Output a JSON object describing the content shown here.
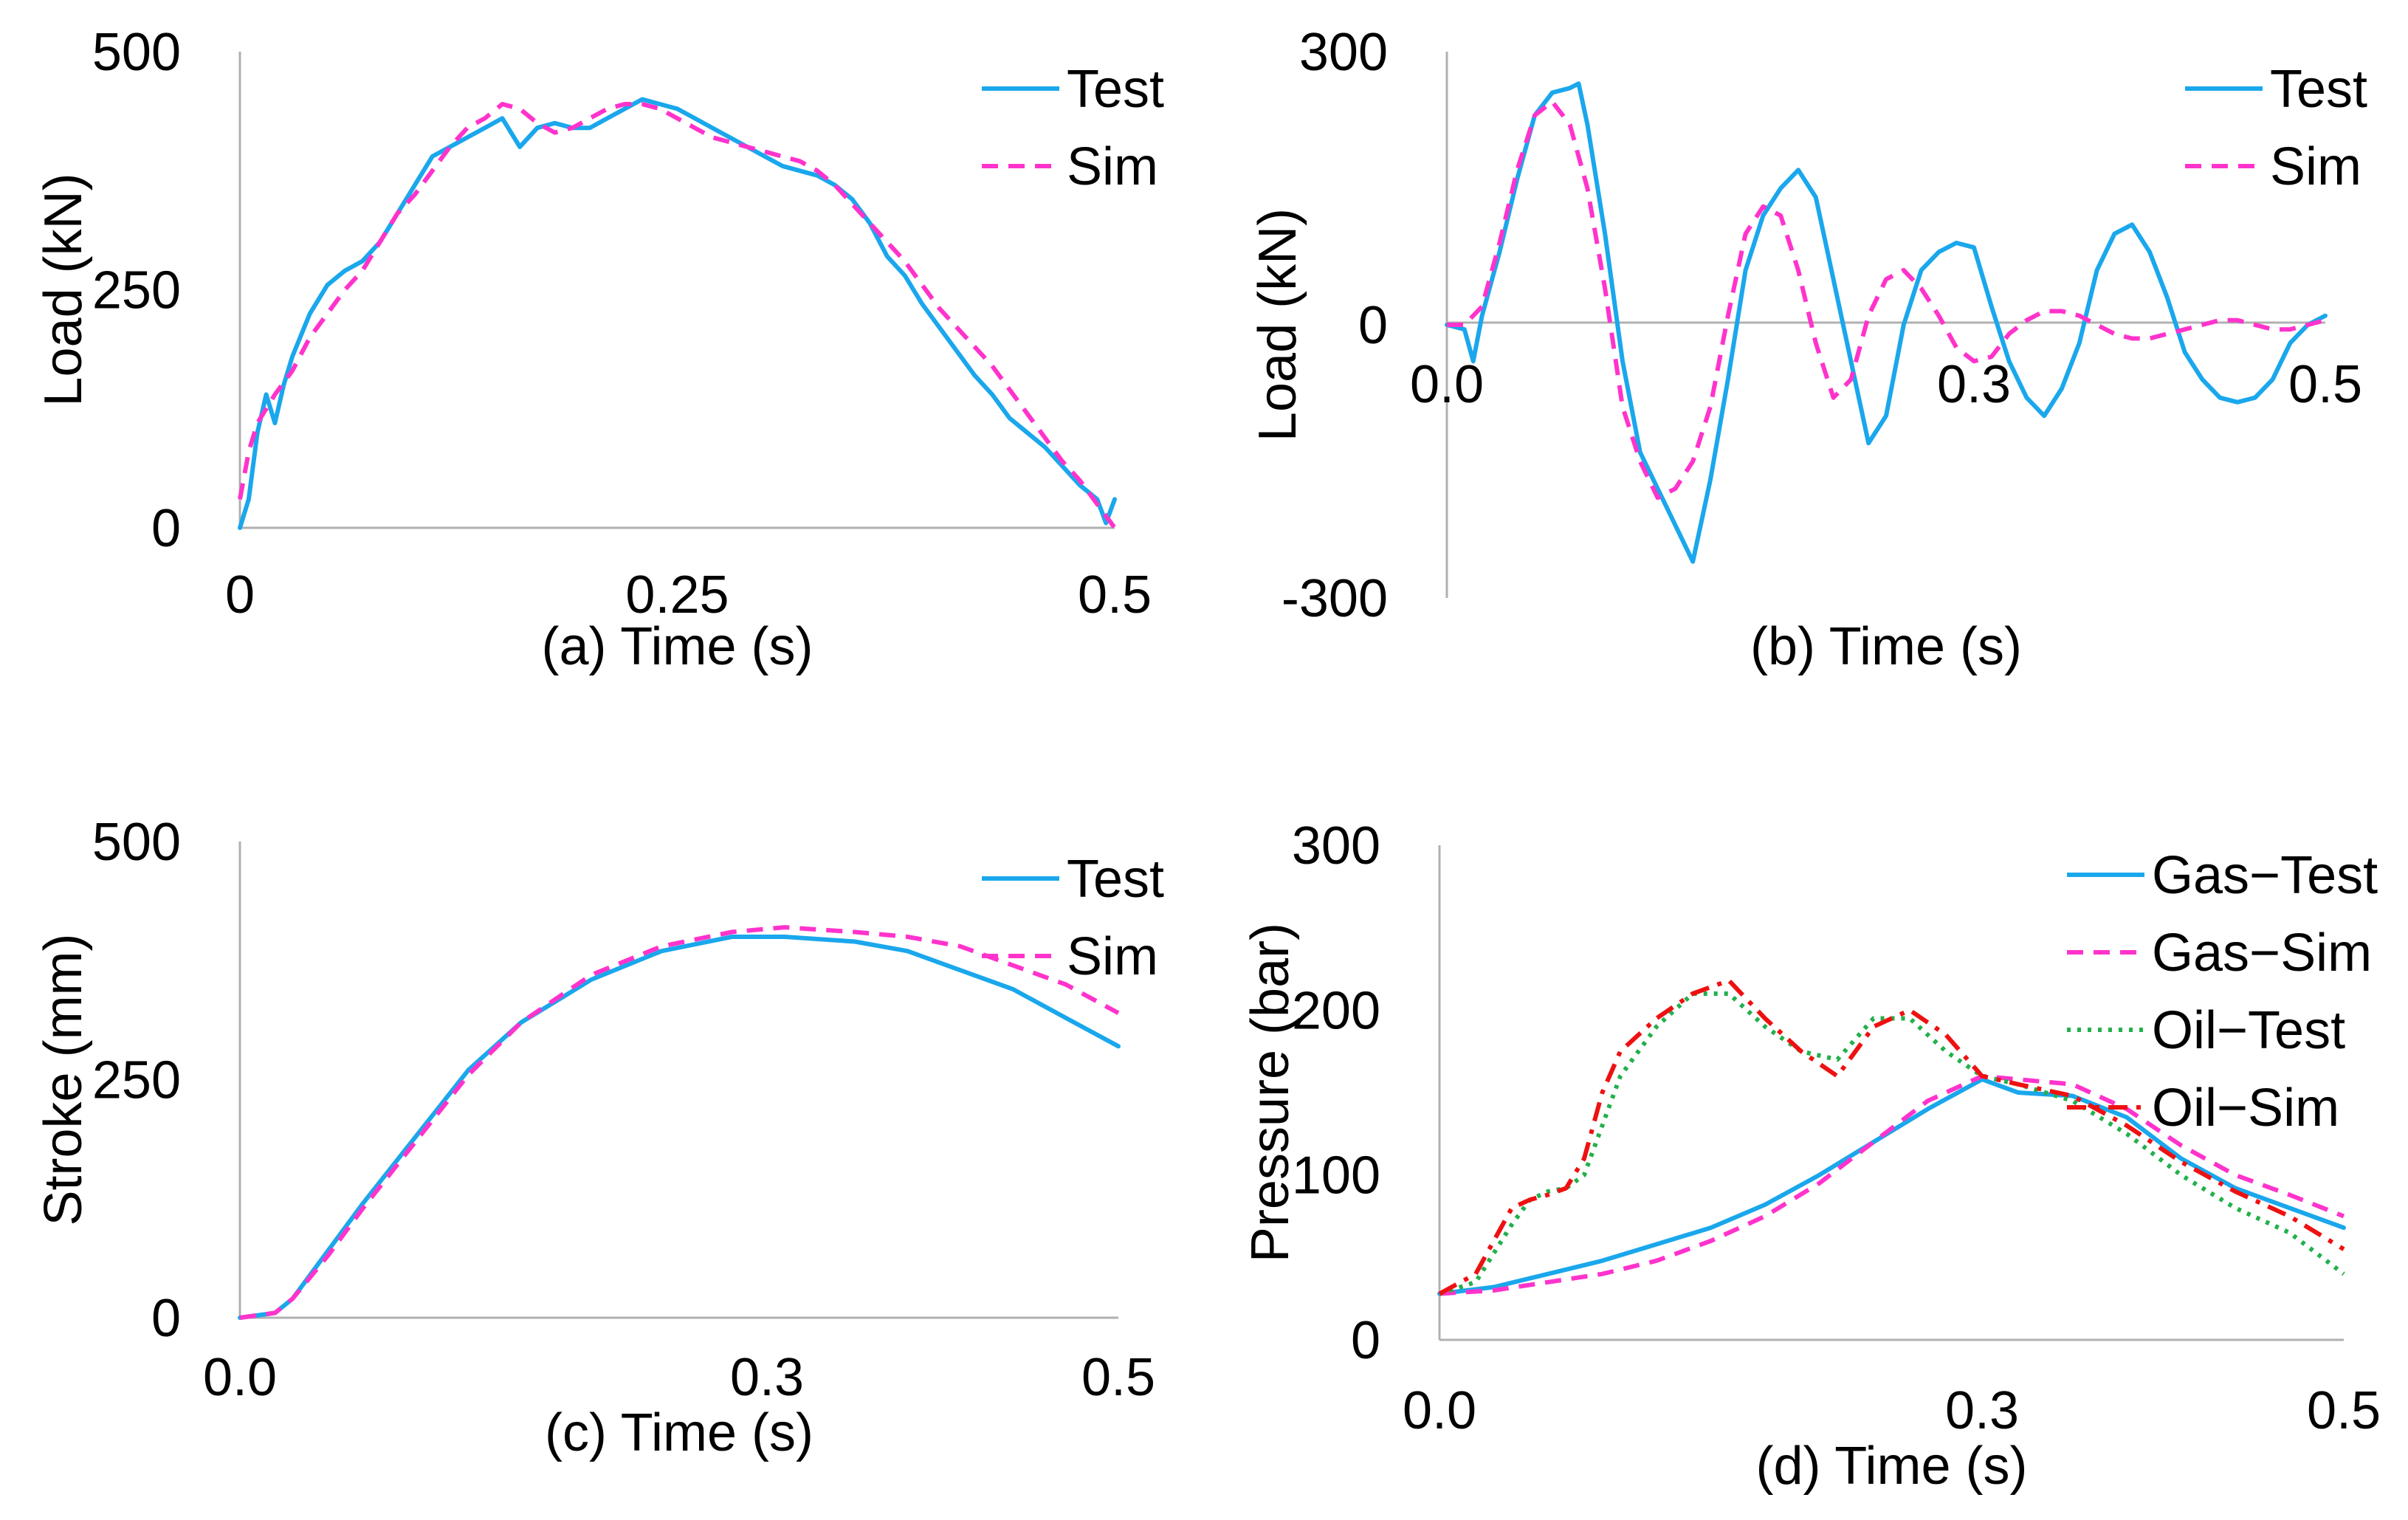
{
  "figure": {
    "colors": {
      "test": "#1aa7ec",
      "sim": "#ff33cc",
      "oil_test": "#22b04b",
      "oil_sim": "#ee1111",
      "axis": "#b0b0b0"
    }
  },
  "chart_data": [
    {
      "id": "a",
      "type": "line",
      "xlabel": "(a) Time (s)",
      "ylabel": "Load (kN)",
      "xlim": [
        0,
        0.5
      ],
      "ylim": [
        0,
        500
      ],
      "xticks": [
        "0",
        "0.25",
        "0.5"
      ],
      "yticks": [
        "0",
        "250",
        "500"
      ],
      "legend": "top-right",
      "grid": false,
      "series": [
        {
          "name": "Test",
          "style": "solid",
          "color": "#1aa7ec",
          "x": [
            0.0,
            0.005,
            0.01,
            0.015,
            0.02,
            0.025,
            0.03,
            0.04,
            0.05,
            0.06,
            0.07,
            0.08,
            0.09,
            0.1,
            0.11,
            0.12,
            0.13,
            0.14,
            0.15,
            0.16,
            0.17,
            0.18,
            0.19,
            0.2,
            0.21,
            0.22,
            0.23,
            0.24,
            0.25,
            0.26,
            0.27,
            0.28,
            0.29,
            0.3,
            0.31,
            0.32,
            0.33,
            0.34,
            0.35,
            0.36,
            0.37,
            0.38,
            0.39,
            0.4,
            0.41,
            0.42,
            0.43,
            0.44,
            0.45,
            0.46,
            0.47,
            0.48,
            0.49,
            0.495,
            0.5
          ],
          "y": [
            0,
            30,
            100,
            140,
            110,
            150,
            180,
            225,
            255,
            270,
            280,
            300,
            330,
            360,
            390,
            400,
            410,
            420,
            430,
            400,
            420,
            425,
            420,
            420,
            430,
            440,
            450,
            445,
            440,
            430,
            420,
            410,
            400,
            390,
            380,
            375,
            370,
            360,
            345,
            320,
            285,
            265,
            235,
            210,
            185,
            160,
            140,
            115,
            100,
            85,
            65,
            45,
            30,
            5,
            30
          ]
        },
        {
          "name": "Sim",
          "style": "dashed",
          "color": "#ff33cc",
          "x": [
            0.0,
            0.005,
            0.01,
            0.02,
            0.03,
            0.04,
            0.05,
            0.06,
            0.07,
            0.08,
            0.09,
            0.1,
            0.11,
            0.12,
            0.13,
            0.14,
            0.15,
            0.16,
            0.17,
            0.18,
            0.19,
            0.2,
            0.21,
            0.22,
            0.23,
            0.24,
            0.25,
            0.26,
            0.27,
            0.28,
            0.29,
            0.3,
            0.31,
            0.32,
            0.33,
            0.34,
            0.35,
            0.36,
            0.37,
            0.38,
            0.39,
            0.4,
            0.41,
            0.42,
            0.43,
            0.44,
            0.45,
            0.46,
            0.47,
            0.48,
            0.49,
            0.5
          ],
          "y": [
            30,
            80,
            110,
            140,
            165,
            200,
            225,
            250,
            270,
            300,
            330,
            350,
            375,
            400,
            420,
            430,
            445,
            440,
            425,
            415,
            420,
            430,
            440,
            445,
            445,
            440,
            430,
            420,
            410,
            405,
            400,
            395,
            390,
            385,
            375,
            360,
            340,
            320,
            300,
            280,
            255,
            230,
            210,
            190,
            170,
            145,
            120,
            95,
            70,
            50,
            25,
            0
          ]
        }
      ]
    },
    {
      "id": "b",
      "type": "line",
      "xlabel": "(b) Time (s)",
      "ylabel": "Load (kN)",
      "xlim": [
        0,
        0.5
      ],
      "ylim": [
        -300,
        300
      ],
      "xticks": [
        "0.0",
        "0.3",
        "0.5"
      ],
      "yticks": [
        "-300",
        "0",
        "300"
      ],
      "legend": "top-right",
      "grid": false,
      "series": [
        {
          "name": "Test",
          "style": "solid",
          "color": "#1aa7ec",
          "x": [
            0.0,
            0.01,
            0.015,
            0.02,
            0.03,
            0.04,
            0.05,
            0.06,
            0.07,
            0.075,
            0.08,
            0.09,
            0.1,
            0.11,
            0.12,
            0.13,
            0.14,
            0.15,
            0.16,
            0.17,
            0.18,
            0.19,
            0.2,
            0.21,
            0.22,
            0.23,
            0.24,
            0.25,
            0.26,
            0.27,
            0.28,
            0.29,
            0.3,
            0.31,
            0.32,
            0.33,
            0.34,
            0.35,
            0.36,
            0.37,
            0.38,
            0.39,
            0.4,
            0.41,
            0.42,
            0.43,
            0.44,
            0.45,
            0.46,
            0.47,
            0.48,
            0.49,
            0.5
          ],
          "y": [
            0,
            -5,
            -40,
            10,
            80,
            160,
            230,
            255,
            260,
            265,
            220,
            100,
            -40,
            -140,
            -180,
            -220,
            -260,
            -170,
            -60,
            60,
            120,
            150,
            170,
            140,
            50,
            -40,
            -130,
            -100,
            0,
            60,
            80,
            90,
            85,
            20,
            -40,
            -80,
            -100,
            -70,
            -20,
            60,
            100,
            110,
            80,
            30,
            -30,
            -60,
            -80,
            -85,
            -80,
            -60,
            -20,
            0,
            10
          ]
        },
        {
          "name": "Sim",
          "style": "dashed",
          "color": "#ff33cc",
          "x": [
            0.0,
            0.01,
            0.02,
            0.03,
            0.04,
            0.05,
            0.06,
            0.07,
            0.08,
            0.09,
            0.1,
            0.11,
            0.12,
            0.13,
            0.14,
            0.15,
            0.16,
            0.17,
            0.18,
            0.19,
            0.2,
            0.21,
            0.22,
            0.23,
            0.24,
            0.25,
            0.26,
            0.27,
            0.28,
            0.29,
            0.3,
            0.31,
            0.32,
            0.33,
            0.34,
            0.35,
            0.36,
            0.37,
            0.38,
            0.39,
            0.4,
            0.41,
            0.42,
            0.43,
            0.44,
            0.45,
            0.46,
            0.47,
            0.48,
            0.49,
            0.5
          ],
          "y": [
            0,
            0,
            20,
            90,
            170,
            230,
            245,
            220,
            150,
            40,
            -90,
            -150,
            -190,
            -180,
            -150,
            -90,
            10,
            100,
            130,
            120,
            60,
            -20,
            -80,
            -60,
            10,
            50,
            60,
            40,
            10,
            -25,
            -40,
            -35,
            -10,
            5,
            15,
            15,
            10,
            0,
            -10,
            -15,
            -15,
            -10,
            -5,
            0,
            5,
            5,
            0,
            -5,
            -5,
            0,
            5
          ]
        }
      ]
    },
    {
      "id": "c",
      "type": "line",
      "xlabel": "(c) Time (s)",
      "ylabel": "Stroke (mm)",
      "xlim": [
        0,
        0.5
      ],
      "ylim": [
        0,
        500
      ],
      "xticks": [
        "0.0",
        "0.3",
        "0.5"
      ],
      "yticks": [
        "0",
        "250",
        "500"
      ],
      "legend": "top-right",
      "grid": false,
      "series": [
        {
          "name": "Test",
          "style": "solid",
          "color": "#1aa7ec",
          "x": [
            0.0,
            0.02,
            0.03,
            0.05,
            0.07,
            0.1,
            0.13,
            0.16,
            0.2,
            0.24,
            0.28,
            0.31,
            0.35,
            0.38,
            0.41,
            0.44,
            0.47,
            0.5
          ],
          "y": [
            0,
            5,
            20,
            70,
            120,
            190,
            260,
            310,
            355,
            385,
            400,
            400,
            395,
            385,
            365,
            345,
            315,
            285
          ]
        },
        {
          "name": "Sim",
          "style": "dashed",
          "color": "#ff33cc",
          "x": [
            0.0,
            0.02,
            0.03,
            0.05,
            0.07,
            0.1,
            0.13,
            0.16,
            0.2,
            0.24,
            0.28,
            0.31,
            0.35,
            0.38,
            0.41,
            0.44,
            0.47,
            0.5
          ],
          "y": [
            0,
            5,
            20,
            65,
            115,
            185,
            255,
            310,
            360,
            390,
            405,
            410,
            405,
            400,
            390,
            370,
            350,
            320
          ]
        }
      ]
    },
    {
      "id": "d",
      "type": "line",
      "xlabel": "(d) Time (s)",
      "ylabel": "Pressure (bar)",
      "xlim": [
        0,
        0.5
      ],
      "ylim": [
        0,
        300
      ],
      "xticks": [
        "0.0",
        "0.3",
        "0.5"
      ],
      "yticks": [
        "0",
        "100",
        "200",
        "300"
      ],
      "legend": "top-right",
      "grid": false,
      "series": [
        {
          "name": "Gas−Test",
          "style": "solid",
          "color": "#1aa7ec",
          "x": [
            0.0,
            0.03,
            0.06,
            0.09,
            0.12,
            0.15,
            0.18,
            0.21,
            0.24,
            0.27,
            0.3,
            0.32,
            0.35,
            0.38,
            0.41,
            0.44,
            0.47,
            0.5
          ],
          "y": [
            28,
            32,
            40,
            48,
            58,
            68,
            82,
            100,
            120,
            140,
            158,
            150,
            148,
            135,
            110,
            92,
            80,
            68
          ]
        },
        {
          "name": "Gas−Sim",
          "style": "dashed",
          "color": "#ff33cc",
          "x": [
            0.0,
            0.03,
            0.06,
            0.09,
            0.12,
            0.15,
            0.18,
            0.21,
            0.24,
            0.27,
            0.3,
            0.32,
            0.35,
            0.38,
            0.41,
            0.44,
            0.47,
            0.5
          ],
          "y": [
            28,
            30,
            35,
            40,
            48,
            60,
            75,
            95,
            120,
            145,
            160,
            158,
            155,
            140,
            118,
            100,
            88,
            75
          ]
        },
        {
          "name": "Oil−Test",
          "style": "dotted",
          "color": "#22b04b",
          "x": [
            0.0,
            0.02,
            0.04,
            0.05,
            0.06,
            0.07,
            0.08,
            0.09,
            0.1,
            0.12,
            0.14,
            0.16,
            0.18,
            0.2,
            0.22,
            0.24,
            0.26,
            0.28,
            0.3,
            0.32,
            0.35,
            0.38,
            0.41,
            0.44,
            0.47,
            0.5
          ],
          "y": [
            28,
            35,
            70,
            85,
            90,
            92,
            100,
            130,
            160,
            190,
            210,
            210,
            190,
            175,
            170,
            195,
            195,
            175,
            160,
            155,
            145,
            125,
            100,
            80,
            65,
            40
          ]
        },
        {
          "name": "Oil−Sim",
          "style": "dashdot",
          "color": "#ee1111",
          "x": [
            0.0,
            0.02,
            0.04,
            0.05,
            0.06,
            0.07,
            0.08,
            0.09,
            0.1,
            0.12,
            0.14,
            0.16,
            0.18,
            0.2,
            0.22,
            0.24,
            0.26,
            0.28,
            0.3,
            0.32,
            0.35,
            0.38,
            0.41,
            0.44,
            0.47,
            0.5
          ],
          "y": [
            28,
            40,
            80,
            85,
            88,
            92,
            110,
            150,
            175,
            195,
            210,
            218,
            195,
            175,
            160,
            190,
            200,
            185,
            160,
            155,
            148,
            130,
            108,
            90,
            75,
            55
          ]
        }
      ]
    }
  ]
}
